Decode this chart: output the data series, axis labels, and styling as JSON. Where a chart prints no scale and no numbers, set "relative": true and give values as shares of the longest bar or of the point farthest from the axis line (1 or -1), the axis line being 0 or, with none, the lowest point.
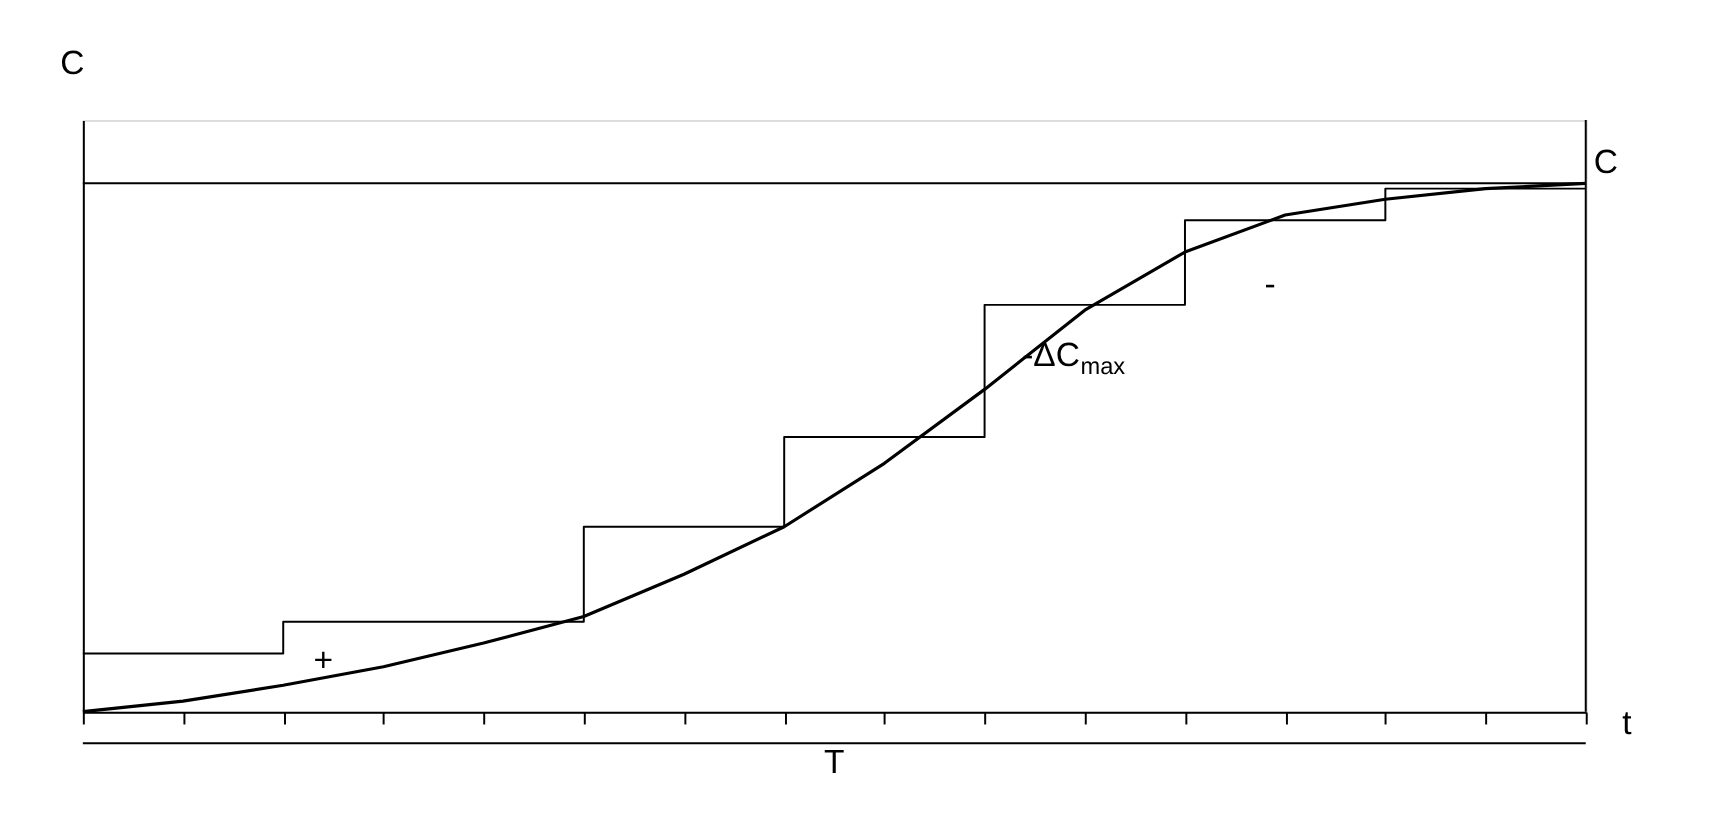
{
  "chart_data": {
    "type": "line",
    "relative": true,
    "xlabel": "t",
    "ylabel": "C",
    "categories": [
      null,
      null,
      null,
      null,
      null,
      null,
      null,
      null,
      null,
      null,
      null,
      null,
      null,
      null,
      null,
      null
    ],
    "tick_labels": false,
    "series": [
      {
        "color": "#000000",
        "values": [
          0,
          0.02,
          0.05,
          0.085,
          0.13,
          0.18,
          0.26,
          0.35,
          0.47,
          0.61,
          0.76,
          0.87,
          0.94,
          0.97,
          0.99,
          1.0
        ]
      },
      {
        "type": "step",
        "color": "#000000",
        "values": [
          0.11,
          0.11,
          0.17,
          0.17,
          0.17,
          0.35,
          0.35,
          0.52,
          0.52,
          0.77,
          0.77,
          0.93,
          0.93,
          0.99,
          0.99,
          0.99
        ]
      }
    ],
    "ref_lines": [
      {
        "axis": "y",
        "value": 1,
        "label": "C"
      }
    ],
    "annotations": [
      "-ΔC$_{max}$",
      "+",
      "-",
      "T"
    ]
  }
}
